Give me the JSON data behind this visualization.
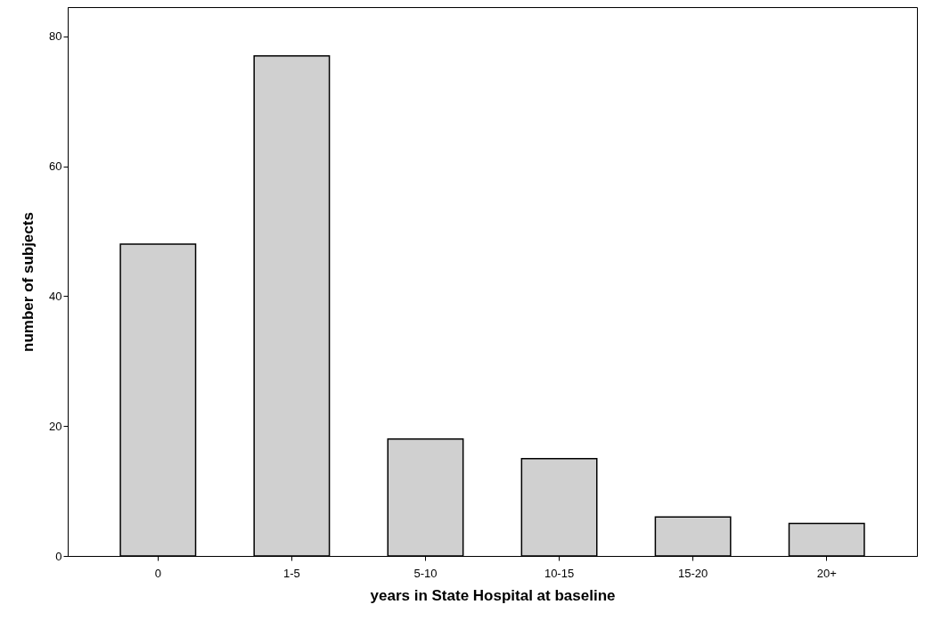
{
  "chart_data": {
    "type": "bar",
    "xlabel": "years in State Hospital at baseline",
    "ylabel": "number of subjects",
    "categories": [
      "0",
      "1-5",
      "5-10",
      "10-15",
      "15-20",
      "20+"
    ],
    "values": [
      48,
      77,
      18,
      15,
      6,
      5
    ],
    "color": "#d0d0d0",
    "ylim": [
      0,
      84.5
    ],
    "yticks": [
      0,
      20,
      40,
      60,
      80
    ],
    "grid": false
  }
}
